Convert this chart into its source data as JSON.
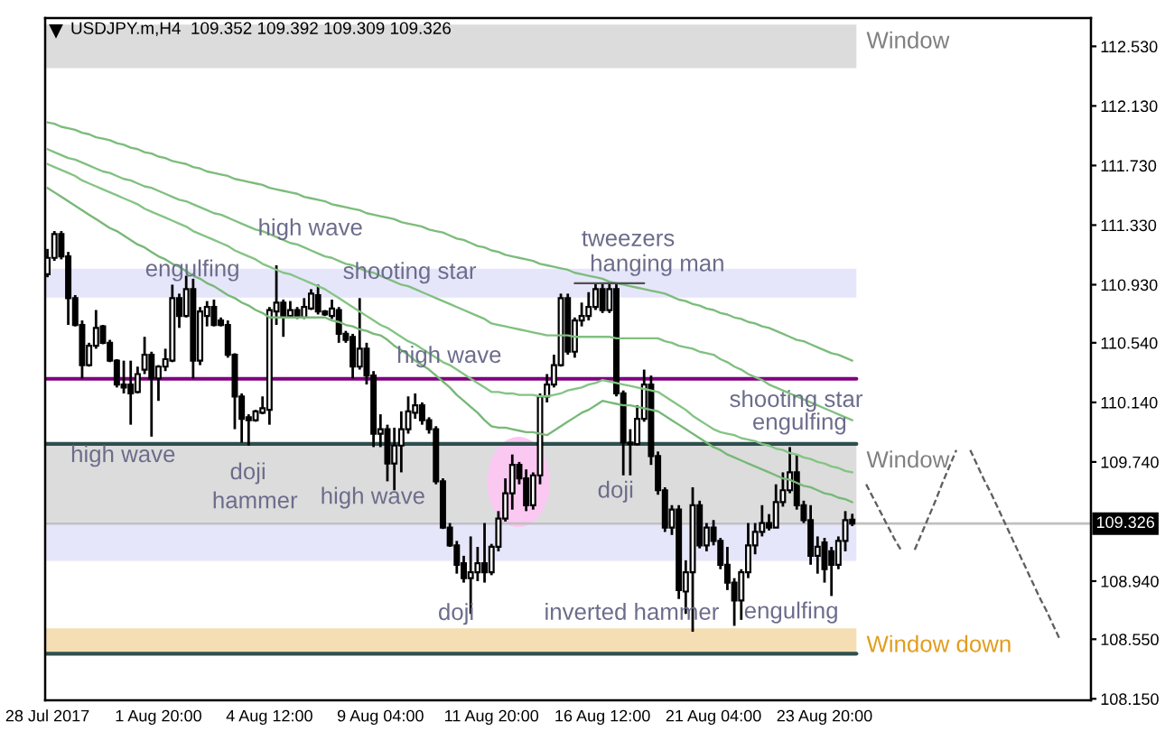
{
  "chart_data": {
    "type": "candlestick",
    "title": "USDJPY.m,H4  109.352 109.392 109.309 109.326",
    "categories": [
      "28 Jul 2017",
      null,
      null,
      null,
      null,
      null,
      null,
      null,
      null,
      null,
      null,
      null,
      null,
      null,
      null,
      null,
      "1 Aug 20:00",
      null,
      null,
      null,
      null,
      null,
      null,
      null,
      null,
      null,
      null,
      null,
      null,
      null,
      null,
      null,
      "4 Aug 12:00",
      null,
      null,
      null,
      null,
      null,
      null,
      null,
      null,
      null,
      null,
      null,
      null,
      null,
      null,
      null,
      "9 Aug 04:00",
      null,
      null,
      null,
      null,
      null,
      null,
      null,
      null,
      null,
      null,
      null,
      null,
      null,
      null,
      null,
      "11 Aug 20:00",
      null,
      null,
      null,
      null,
      null,
      null,
      null,
      null,
      null,
      null,
      null,
      null,
      null,
      null,
      null,
      "16 Aug 12:00",
      null,
      null,
      null,
      null,
      null,
      null,
      null,
      null,
      null,
      null,
      null,
      null,
      null,
      null,
      null,
      "21 Aug 04:00",
      null,
      null,
      null,
      null,
      null,
      null,
      null,
      null,
      null,
      null,
      null,
      null,
      null,
      null,
      null,
      "23 Aug 20:00",
      null,
      null,
      null,
      null,
      null,
      null,
      null,
      null,
      null,
      null,
      null,
      null,
      null,
      null,
      null,
      null,
      null,
      null,
      null,
      null,
      null,
      null,
      null,
      null,
      null,
      null,
      null,
      null,
      null,
      null,
      null,
      null,
      null,
      null,
      null,
      null,
      null,
      null
    ],
    "ohlc": [
      [
        111.0,
        111.17,
        110.98,
        111.11
      ],
      [
        111.11,
        111.29,
        111.09,
        111.27
      ],
      [
        111.27,
        111.29,
        111.1,
        111.12
      ],
      [
        111.12,
        111.15,
        110.66,
        110.84
      ],
      [
        110.84,
        110.86,
        110.65,
        110.66
      ],
      [
        110.66,
        110.69,
        110.3,
        110.39
      ],
      [
        110.39,
        110.54,
        110.38,
        110.52
      ],
      [
        110.52,
        110.76,
        110.5,
        110.64
      ],
      [
        110.65,
        110.66,
        110.53,
        110.54
      ],
      [
        110.54,
        110.56,
        110.41,
        110.42
      ],
      [
        110.42,
        110.43,
        110.24,
        110.26
      ],
      [
        110.26,
        110.42,
        110.2,
        110.24
      ],
      [
        110.26,
        110.42,
        109.99,
        110.2
      ],
      [
        110.21,
        110.38,
        110.2,
        110.33
      ],
      [
        110.36,
        110.58,
        110.33,
        110.46
      ],
      [
        110.46,
        110.48,
        109.91,
        110.3
      ],
      [
        110.3,
        110.39,
        110.15,
        110.38
      ],
      [
        110.38,
        110.5,
        110.35,
        110.43
      ],
      [
        110.42,
        110.93,
        110.41,
        110.84
      ],
      [
        110.84,
        110.87,
        110.64,
        110.72
      ],
      [
        110.72,
        110.99,
        110.71,
        110.9
      ],
      [
        110.9,
        110.97,
        110.3,
        110.42
      ],
      [
        110.42,
        110.78,
        110.39,
        110.75
      ],
      [
        110.72,
        110.82,
        110.65,
        110.78
      ],
      [
        110.78,
        110.83,
        110.65,
        110.66
      ],
      [
        110.69,
        110.71,
        110.65,
        110.66
      ],
      [
        110.66,
        110.69,
        110.44,
        110.46
      ],
      [
        110.46,
        110.47,
        109.96,
        110.18
      ],
      [
        110.18,
        110.2,
        109.87,
        110.03
      ],
      [
        110.04,
        110.06,
        109.85,
        110.02
      ],
      [
        110.02,
        110.09,
        110.01,
        110.08
      ],
      [
        110.07,
        110.18,
        110.06,
        110.1
      ],
      [
        110.09,
        110.78,
        109.99,
        110.76
      ],
      [
        110.75,
        111.06,
        110.66,
        110.81
      ],
      [
        110.81,
        110.83,
        110.58,
        110.72
      ],
      [
        110.72,
        110.82,
        110.71,
        110.76
      ],
      [
        110.76,
        110.78,
        110.7,
        110.72
      ],
      [
        110.71,
        110.84,
        110.7,
        110.78
      ],
      [
        110.77,
        110.9,
        110.76,
        110.87
      ],
      [
        110.86,
        110.93,
        110.73,
        110.75
      ],
      [
        110.75,
        110.76,
        110.72,
        110.73
      ],
      [
        110.72,
        110.83,
        110.7,
        110.77
      ],
      [
        110.76,
        110.78,
        110.54,
        110.6
      ],
      [
        110.6,
        110.62,
        110.54,
        110.56
      ],
      [
        110.58,
        110.6,
        110.3,
        110.38
      ],
      [
        110.38,
        110.84,
        110.36,
        110.5
      ],
      [
        110.5,
        110.54,
        110.26,
        110.32
      ],
      [
        110.32,
        110.35,
        109.84,
        109.93
      ],
      [
        109.93,
        110.06,
        109.84,
        109.96
      ],
      [
        109.96,
        109.99,
        109.61,
        109.73
      ],
      [
        109.73,
        109.97,
        109.55,
        109.85
      ],
      [
        109.85,
        110.08,
        109.67,
        109.96
      ],
      [
        109.96,
        110.18,
        109.93,
        110.08
      ],
      [
        110.07,
        110.2,
        110.03,
        110.12
      ],
      [
        110.12,
        110.14,
        109.99,
        110.02
      ],
      [
        110.02,
        110.04,
        109.93,
        109.96
      ],
      [
        109.96,
        109.98,
        109.59,
        109.61
      ],
      [
        109.61,
        109.63,
        109.29,
        109.3
      ],
      [
        109.3,
        109.33,
        109.17,
        109.18
      ],
      [
        109.18,
        109.21,
        108.99,
        109.05
      ],
      [
        109.06,
        109.11,
        108.93,
        108.96
      ],
      [
        108.96,
        109.24,
        108.72,
        109.0
      ],
      [
        109.0,
        109.17,
        108.94,
        109.06
      ],
      [
        109.06,
        109.33,
        108.93,
        109.0
      ],
      [
        109.0,
        109.19,
        108.98,
        109.17
      ],
      [
        109.17,
        109.41,
        109.14,
        109.36
      ],
      [
        109.36,
        109.63,
        109.34,
        109.53
      ],
      [
        109.53,
        109.79,
        109.42,
        109.72
      ],
      [
        109.72,
        109.74,
        109.59,
        109.63
      ],
      [
        109.63,
        109.69,
        109.41,
        109.45
      ],
      [
        109.45,
        109.67,
        109.42,
        109.65
      ],
      [
        109.65,
        110.2,
        109.59,
        110.18
      ],
      [
        110.18,
        110.33,
        110.14,
        110.26
      ],
      [
        110.26,
        110.46,
        110.24,
        110.39
      ],
      [
        110.39,
        110.87,
        110.38,
        110.84
      ],
      [
        110.84,
        110.87,
        110.46,
        110.48
      ],
      [
        110.48,
        110.71,
        110.44,
        110.69
      ],
      [
        110.69,
        110.81,
        110.65,
        110.72
      ],
      [
        110.72,
        110.88,
        110.69,
        110.78
      ],
      [
        110.78,
        110.94,
        110.76,
        110.9
      ],
      [
        110.9,
        110.94,
        110.74,
        110.76
      ],
      [
        110.76,
        110.94,
        110.74,
        110.9
      ],
      [
        110.9,
        110.94,
        110.18,
        110.2
      ],
      [
        110.2,
        110.22,
        109.65,
        109.87
      ],
      [
        109.87,
        109.96,
        109.65,
        109.86
      ],
      [
        109.86,
        110.12,
        109.85,
        110.03
      ],
      [
        110.03,
        110.36,
        110.01,
        110.26
      ],
      [
        110.26,
        110.32,
        109.72,
        109.78
      ],
      [
        109.78,
        109.81,
        109.52,
        109.55
      ],
      [
        109.55,
        109.57,
        109.27,
        109.3
      ],
      [
        109.3,
        109.45,
        109.25,
        109.42
      ],
      [
        109.42,
        109.45,
        108.82,
        108.88
      ],
      [
        108.87,
        109.08,
        108.72,
        109.0
      ],
      [
        109.0,
        109.57,
        108.6,
        109.45
      ],
      [
        109.45,
        109.48,
        109.16,
        109.18
      ],
      [
        109.18,
        109.33,
        109.14,
        109.3
      ],
      [
        109.3,
        109.35,
        109.18,
        109.21
      ],
      [
        109.21,
        109.23,
        109.02,
        109.05
      ],
      [
        109.05,
        109.17,
        108.88,
        108.93
      ],
      [
        108.93,
        108.96,
        108.64,
        108.81
      ],
      [
        108.81,
        109.02,
        108.68,
        109.0
      ],
      [
        109.0,
        109.33,
        108.96,
        109.18
      ],
      [
        109.18,
        109.33,
        109.12,
        109.27
      ],
      [
        109.27,
        109.45,
        109.24,
        109.33
      ],
      [
        109.33,
        109.39,
        109.28,
        109.3
      ],
      [
        109.3,
        109.59,
        109.3,
        109.47
      ],
      [
        109.47,
        109.67,
        109.44,
        109.55
      ],
      [
        109.55,
        109.84,
        109.53,
        109.67
      ],
      [
        109.67,
        109.79,
        109.42,
        109.45
      ],
      [
        109.45,
        109.48,
        109.33,
        109.35
      ],
      [
        109.35,
        109.45,
        109.05,
        109.11
      ],
      [
        109.11,
        109.24,
        108.99,
        109.17
      ],
      [
        109.2,
        109.23,
        108.93,
        109.02
      ],
      [
        109.14,
        109.17,
        108.84,
        109.05
      ],
      [
        109.05,
        109.24,
        109.02,
        109.21
      ],
      [
        109.21,
        109.41,
        109.14,
        109.35
      ],
      [
        109.352,
        109.392,
        109.309,
        109.326
      ],
      null,
      null,
      null,
      null,
      null,
      null,
      null,
      null,
      null,
      null,
      null,
      null,
      null,
      null,
      null,
      null,
      null,
      null,
      null,
      null,
      null,
      null,
      null,
      null,
      null,
      null,
      null,
      null,
      null,
      null,
      null,
      null,
      null,
      null
    ],
    "series": [
      {
        "type": "line",
        "color": "#7cbc7c",
        "values": [
          112.02,
          112.01,
          111.99,
          111.98,
          111.97,
          111.95,
          111.94,
          111.92,
          111.91,
          111.9,
          111.88,
          111.87,
          111.85,
          111.84,
          111.82,
          111.81,
          111.79,
          111.78,
          111.76,
          111.75,
          111.74,
          111.72,
          111.71,
          111.69,
          111.68,
          111.67,
          111.66,
          111.64,
          111.63,
          111.62,
          111.61,
          111.6,
          111.58,
          111.57,
          111.56,
          111.55,
          111.54,
          111.52,
          111.51,
          111.5,
          111.49,
          111.47,
          111.46,
          111.45,
          111.44,
          111.43,
          111.41,
          111.4,
          111.39,
          111.38,
          111.37,
          111.35,
          111.34,
          111.33,
          111.32,
          111.3,
          111.29,
          111.28,
          111.26,
          111.24,
          111.23,
          111.21,
          111.19,
          111.18,
          111.16,
          111.15,
          111.13,
          111.12,
          111.11,
          111.1,
          111.09,
          111.07,
          111.06,
          111.05,
          111.04,
          111.03,
          111.01,
          111.0,
          110.99,
          110.98,
          110.97,
          110.95,
          110.94,
          110.93,
          110.92,
          110.91,
          110.9,
          110.89,
          110.88,
          110.87,
          110.85,
          110.83,
          110.82,
          110.8,
          110.79,
          110.77,
          110.76,
          110.74,
          110.73,
          110.71,
          110.7,
          110.68,
          110.67,
          110.65,
          110.64,
          110.62,
          110.6,
          110.58,
          110.56,
          110.55,
          110.53,
          110.51,
          110.49,
          110.47,
          110.46,
          110.44,
          110.42,
          null,
          null,
          null,
          null,
          null,
          null,
          null,
          null,
          null,
          null,
          null,
          null,
          null,
          null,
          null,
          null,
          null,
          null,
          null,
          null,
          null,
          null,
          null,
          null,
          null,
          null,
          null,
          null,
          null,
          null,
          null,
          null,
          null,
          null
        ]
      },
      {
        "type": "line",
        "color": "#80c080",
        "values": [
          111.84,
          111.82,
          111.8,
          111.78,
          111.77,
          111.75,
          111.73,
          111.71,
          111.69,
          111.68,
          111.66,
          111.64,
          111.63,
          111.61,
          111.59,
          111.58,
          111.56,
          111.54,
          111.52,
          111.5,
          111.49,
          111.47,
          111.45,
          111.43,
          111.41,
          111.4,
          111.38,
          111.36,
          111.34,
          111.32,
          111.3,
          111.29,
          111.27,
          111.25,
          111.23,
          111.21,
          111.2,
          111.18,
          111.16,
          111.14,
          111.12,
          111.11,
          111.09,
          111.07,
          111.06,
          111.04,
          111.02,
          111.01,
          110.99,
          110.97,
          110.95,
          110.93,
          110.92,
          110.9,
          110.88,
          110.86,
          110.84,
          110.82,
          110.8,
          110.78,
          110.76,
          110.74,
          110.72,
          110.7,
          110.67,
          110.66,
          110.65,
          110.64,
          110.63,
          110.62,
          110.61,
          110.6,
          110.59,
          110.59,
          110.59,
          110.59,
          110.58,
          110.58,
          110.58,
          110.58,
          110.58,
          110.58,
          110.57,
          110.57,
          110.57,
          110.57,
          110.57,
          110.57,
          110.57,
          110.55,
          110.54,
          110.52,
          110.51,
          110.5,
          110.48,
          110.47,
          110.46,
          110.43,
          110.41,
          110.38,
          110.36,
          110.33,
          110.31,
          110.29,
          110.26,
          110.24,
          110.22,
          110.2,
          110.18,
          110.16,
          110.14,
          110.12,
          110.1,
          110.08,
          110.06,
          110.04,
          110.02,
          null,
          null,
          null,
          null,
          null,
          null,
          null,
          null,
          null,
          null,
          null,
          null,
          null,
          null,
          null,
          null,
          null,
          null,
          null,
          null,
          null,
          null,
          null,
          null,
          null,
          null,
          null,
          null,
          null,
          null,
          null,
          null,
          null,
          null
        ]
      },
      {
        "type": "line",
        "color": "#84c484",
        "values": [
          111.74,
          111.72,
          111.7,
          111.68,
          111.66,
          111.63,
          111.61,
          111.59,
          111.57,
          111.55,
          111.53,
          111.51,
          111.49,
          111.47,
          111.44,
          111.42,
          111.4,
          111.38,
          111.36,
          111.34,
          111.32,
          111.29,
          111.27,
          111.25,
          111.23,
          111.21,
          111.19,
          111.16,
          111.14,
          111.12,
          111.1,
          111.07,
          111.05,
          111.03,
          111.01,
          111.0,
          110.98,
          110.96,
          110.94,
          110.92,
          110.9,
          110.87,
          110.84,
          110.81,
          110.78,
          110.75,
          110.72,
          110.69,
          110.66,
          110.64,
          110.61,
          110.58,
          110.55,
          110.53,
          110.5,
          110.47,
          110.44,
          110.41,
          110.39,
          110.36,
          110.33,
          110.3,
          110.27,
          110.24,
          110.21,
          110.21,
          110.2,
          110.2,
          110.19,
          110.19,
          110.19,
          110.18,
          110.18,
          110.19,
          110.2,
          110.22,
          110.23,
          110.24,
          110.26,
          110.27,
          110.29,
          110.28,
          110.27,
          110.26,
          110.25,
          110.24,
          110.23,
          110.22,
          110.21,
          110.18,
          110.15,
          110.12,
          110.09,
          110.05,
          110.02,
          109.99,
          109.96,
          109.94,
          109.93,
          109.92,
          109.9,
          109.89,
          109.88,
          109.86,
          109.85,
          109.83,
          109.82,
          109.8,
          109.79,
          109.77,
          109.76,
          109.74,
          109.73,
          109.71,
          109.7,
          109.68,
          109.67,
          null,
          null,
          null,
          null,
          null,
          null,
          null,
          null,
          null,
          null,
          null,
          null,
          null,
          null,
          null,
          null,
          null,
          null,
          null,
          null,
          null,
          null,
          null,
          null,
          null,
          null,
          null,
          null,
          null,
          null,
          null,
          null,
          null,
          null
        ]
      },
      {
        "type": "line",
        "color": "#78b878",
        "values": [
          111.58,
          111.55,
          111.52,
          111.49,
          111.46,
          111.43,
          111.4,
          111.37,
          111.34,
          111.31,
          111.29,
          111.26,
          111.23,
          111.2,
          111.18,
          111.15,
          111.12,
          111.1,
          111.07,
          111.05,
          111.02,
          110.99,
          110.97,
          110.94,
          110.92,
          110.89,
          110.86,
          110.84,
          110.81,
          110.79,
          110.76,
          110.74,
          110.71,
          110.71,
          110.71,
          110.71,
          110.71,
          110.71,
          110.71,
          110.71,
          110.71,
          110.69,
          110.68,
          110.66,
          110.65,
          110.63,
          110.62,
          110.6,
          110.59,
          110.56,
          110.52,
          110.49,
          110.46,
          110.42,
          110.39,
          110.36,
          110.32,
          110.28,
          110.24,
          110.19,
          110.15,
          110.11,
          110.07,
          110.02,
          109.98,
          109.97,
          109.97,
          109.96,
          109.95,
          109.94,
          109.94,
          109.93,
          109.92,
          109.95,
          109.98,
          110.01,
          110.04,
          110.07,
          110.09,
          110.12,
          110.15,
          110.14,
          110.13,
          110.12,
          110.12,
          110.11,
          110.1,
          110.09,
          110.08,
          110.05,
          110.02,
          109.99,
          109.96,
          109.93,
          109.9,
          109.87,
          109.84,
          109.82,
          109.79,
          109.77,
          109.75,
          109.73,
          109.71,
          109.69,
          109.67,
          109.65,
          109.63,
          109.62,
          109.6,
          109.58,
          109.57,
          109.55,
          109.53,
          109.52,
          109.5,
          109.49,
          109.47,
          null,
          null,
          null,
          null,
          null,
          null,
          null,
          null,
          null,
          null,
          null,
          null,
          null,
          null,
          null,
          null,
          null,
          null,
          null,
          null,
          null,
          null,
          null,
          null,
          null,
          null,
          null,
          null,
          null,
          null,
          null,
          null,
          null,
          null
        ]
      },
      {
        "type": "line",
        "color": "#505050",
        "values": [
          null,
          null,
          null,
          null,
          null,
          null,
          null,
          null,
          null,
          null,
          null,
          null,
          null,
          null,
          null,
          null,
          null,
          null,
          null,
          null,
          null,
          null,
          null,
          null,
          null,
          null,
          null,
          null,
          null,
          null,
          null,
          null,
          null,
          null,
          null,
          null,
          null,
          null,
          null,
          null,
          null,
          null,
          null,
          null,
          null,
          null,
          null,
          null,
          null,
          null,
          null,
          null,
          null,
          null,
          null,
          null,
          null,
          null,
          null,
          null,
          null,
          null,
          null,
          null,
          null,
          null,
          null,
          null,
          null,
          null,
          null,
          null,
          null,
          null,
          null,
          null,
          110.94,
          110.94,
          110.94,
          110.94,
          110.94,
          110.94,
          110.94,
          110.94,
          110.94,
          110.94,
          110.94,
          null,
          null,
          null,
          null,
          null,
          null,
          null,
          null,
          null,
          null,
          null,
          null,
          null,
          null,
          null,
          null,
          null,
          null,
          null,
          null,
          null,
          null,
          null,
          null,
          null,
          null,
          null,
          null,
          null,
          null,
          null,
          null,
          null,
          null,
          null,
          null,
          null,
          null,
          null,
          null,
          null,
          null,
          null,
          null,
          null,
          null,
          null,
          null,
          null,
          null,
          null,
          null,
          null,
          null,
          null,
          null,
          null,
          null,
          null,
          null,
          null,
          null,
          null,
          null
        ]
      },
      {
        "type": "line",
        "color": "#606060",
        "line_style": "dashed",
        "values": [
          null,
          null,
          null,
          null,
          null,
          null,
          null,
          null,
          null,
          null,
          null,
          null,
          null,
          null,
          null,
          null,
          null,
          null,
          null,
          null,
          null,
          null,
          null,
          null,
          null,
          null,
          null,
          null,
          null,
          null,
          null,
          null,
          null,
          null,
          null,
          null,
          null,
          null,
          null,
          null,
          null,
          null,
          null,
          null,
          null,
          null,
          null,
          null,
          null,
          null,
          null,
          null,
          null,
          null,
          null,
          null,
          null,
          null,
          null,
          null,
          null,
          null,
          null,
          null,
          null,
          null,
          null,
          null,
          null,
          null,
          null,
          null,
          null,
          null,
          null,
          null,
          null,
          null,
          null,
          null,
          null,
          null,
          null,
          null,
          null,
          null,
          null,
          null,
          null,
          null,
          null,
          null,
          null,
          null,
          null,
          null,
          null,
          null,
          null,
          null,
          null,
          null,
          null,
          null,
          null,
          null,
          null,
          null,
          null,
          null,
          null,
          null,
          null,
          null,
          null,
          null,
          null,
          null,
          109.59,
          109.5,
          109.41,
          109.32,
          109.23,
          109.15,
          null,
          109.15,
          109.26,
          109.37,
          109.48,
          109.6,
          109.71,
          109.82,
          null,
          109.82,
          109.72,
          109.62,
          109.53,
          109.43,
          109.33,
          109.23,
          109.13,
          109.03,
          108.93,
          108.83,
          108.74,
          108.64,
          108.54,
          null,
          null,
          null,
          null
        ]
      }
    ],
    "ylim": [
      108.14,
      112.72
    ],
    "yticks": [
      {
        "value": 108.15,
        "label": "108.150"
      },
      {
        "value": 108.55,
        "label": "108.550"
      },
      {
        "value": 108.94,
        "label": "108.940"
      },
      {
        "value": 109.74,
        "label": "109.740"
      },
      {
        "value": 110.14,
        "label": "110.140"
      },
      {
        "value": 110.54,
        "label": "110.540"
      },
      {
        "value": 110.93,
        "label": "110.930"
      },
      {
        "value": 111.33,
        "label": "111.330"
      },
      {
        "value": 111.73,
        "label": "111.730"
      },
      {
        "value": 112.13,
        "label": "112.130"
      },
      {
        "value": 112.53,
        "label": "112.530"
      }
    ],
    "bands": [
      {
        "axis": "y",
        "from": 112.384,
        "to": 112.676,
        "label": "Window",
        "color": "#dcdcdc"
      },
      {
        "axis": "y",
        "from": 110.844,
        "to": 111.038,
        "color": "#e6e6fa"
      },
      {
        "axis": "y",
        "from": 109.34,
        "to": 109.861,
        "label": "Window",
        "color": "#dcdcdc"
      },
      {
        "axis": "y",
        "from": 109.076,
        "to": 109.34,
        "color": "#e6e6fa"
      },
      {
        "axis": "y",
        "from": 108.453,
        "to": 108.623,
        "label": "Window down",
        "color": "#f5deb3"
      }
    ],
    "ref_lines": [
      {
        "axis": "y",
        "value": 110.298,
        "color": "#800080"
      },
      {
        "axis": "y",
        "value": 109.861,
        "color": "#2f4f4f"
      },
      {
        "axis": "y",
        "value": 108.453,
        "color": "#2f4f4f"
      },
      {
        "axis": "y",
        "value": 109.326,
        "label": "109.326",
        "color": "#c0c0c0"
      }
    ],
    "annotations": [
      {
        "text": "engulfing",
        "y": 110.99
      },
      {
        "text": "high wave",
        "y": 111.06
      },
      "shooting star",
      {
        "text": "high wave",
        "y": 110.35
      },
      "tweezers",
      {
        "text": "hanging man",
        "y": 110.94
      },
      "high wave",
      {
        "text": "doji",
        "y": 109.87
      },
      "hammer",
      "high wave",
      "doji",
      {
        "text": "doji",
        "y": 109.65
      },
      {
        "text": "inverted hammer",
        "y": 108.6
      },
      "engulfing",
      "shooting star",
      {
        "text": "engulfing",
        "y": 109.84
      }
    ]
  }
}
